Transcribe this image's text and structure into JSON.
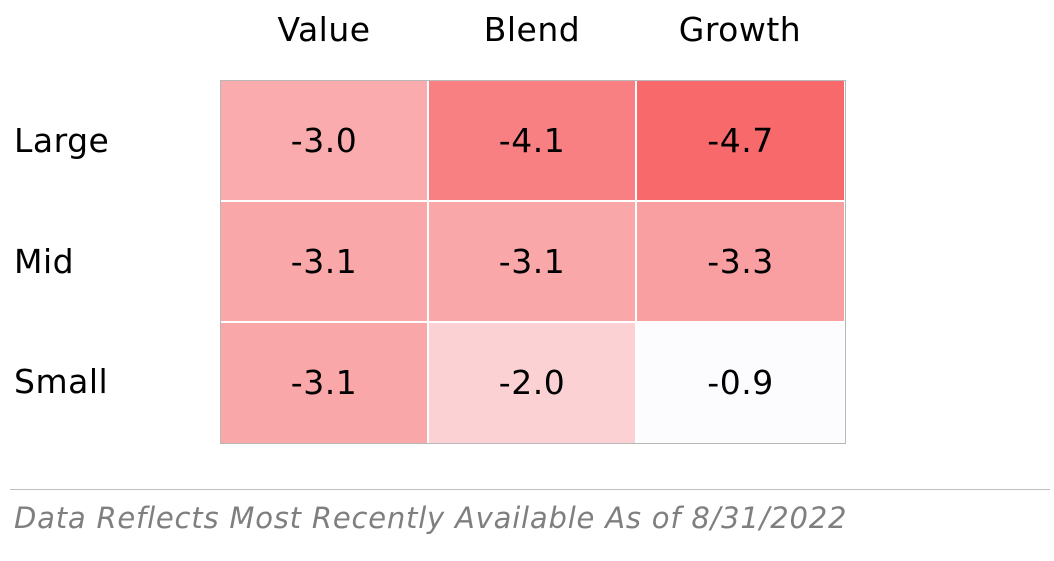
{
  "chart_data": {
    "type": "heatmap",
    "columns": [
      "Value",
      "Blend",
      "Growth"
    ],
    "rows": [
      "Large",
      "Mid",
      "Small"
    ],
    "values": [
      [
        -3.0,
        -4.1,
        -4.7
      ],
      [
        -3.1,
        -3.1,
        -3.3
      ],
      [
        -3.1,
        -2.0,
        -0.9
      ]
    ],
    "labels": [
      [
        "-3.0",
        "-4.1",
        "-4.7"
      ],
      [
        "-3.1",
        "-3.1",
        "-3.3"
      ],
      [
        "-3.1",
        "-2.0",
        "-0.9"
      ]
    ],
    "color_scale": {
      "low_color": "#f8696b",
      "high_color": "#fcfcff",
      "min": -4.7,
      "max": -0.9
    },
    "grid": true
  },
  "footnote": "Data Reflects Most Recently Available As of 8/31/2022"
}
